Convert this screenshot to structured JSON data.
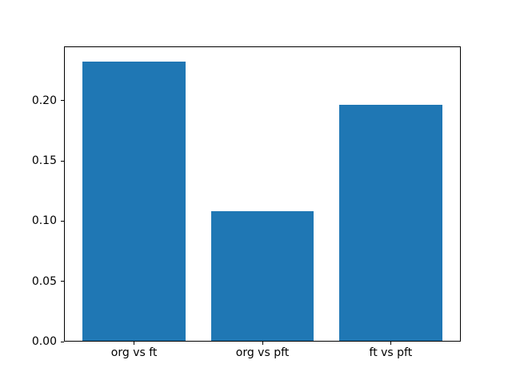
{
  "chart_data": {
    "type": "bar",
    "categories": [
      "org vs ft",
      "org vs pft",
      "ft vs pft"
    ],
    "values": [
      0.233,
      0.108,
      0.197
    ],
    "title": "",
    "xlabel": "",
    "ylabel": "",
    "ylim": [
      0,
      0.245
    ],
    "yticks": [
      0.0,
      0.05,
      0.1,
      0.15,
      0.2
    ],
    "ytick_labels": [
      "0.00",
      "0.05",
      "0.10",
      "0.15",
      "0.20"
    ],
    "bar_color": "#1f77b4",
    "grid": false,
    "legend": "none",
    "background_color": "#ffffff",
    "axis_color": "#000000"
  }
}
